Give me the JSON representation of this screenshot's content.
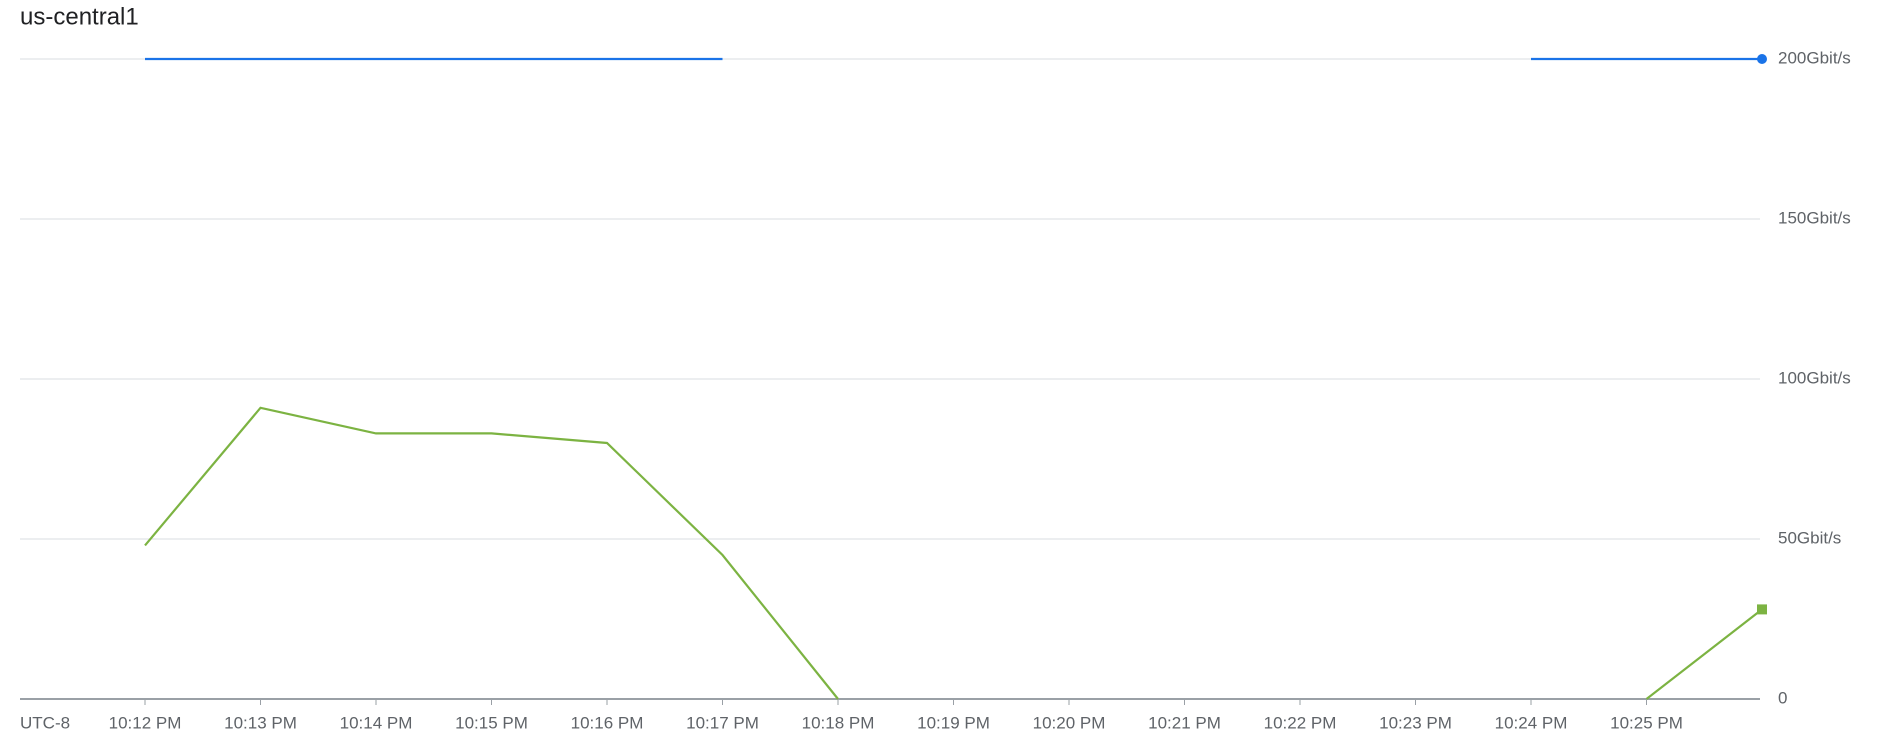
{
  "chart_data": {
    "type": "line",
    "title": "us-central1",
    "timezone": "UTC-8",
    "categories": [
      "10:12 PM",
      "10:13 PM",
      "10:14 PM",
      "10:15 PM",
      "10:16 PM",
      "10:17 PM",
      "10:18 PM",
      "10:19 PM",
      "10:20 PM",
      "10:21 PM",
      "10:22 PM",
      "10:23 PM",
      "10:24 PM",
      "10:25 PM",
      null
    ],
    "series": [
      {
        "color": "#1a73e8",
        "end_marker": "circle",
        "values": [
          200,
          200,
          200,
          200,
          200,
          200,
          null,
          null,
          null,
          null,
          null,
          null,
          200,
          200,
          200
        ]
      },
      {
        "color": "#7cb342",
        "end_marker": "square",
        "values": [
          48,
          91,
          83,
          83,
          80,
          45,
          0,
          null,
          null,
          null,
          null,
          null,
          null,
          0,
          28
        ]
      }
    ],
    "ylim": [
      0,
      200
    ],
    "yticks": [
      0,
      {
        "value": 50,
        "label": "50Gbit/s"
      },
      {
        "value": 100,
        "label": "100Gbit/s"
      },
      {
        "value": 150,
        "label": "150Gbit/s"
      },
      {
        "value": 200,
        "label": "200Gbit/s"
      }
    ],
    "grid": true
  }
}
